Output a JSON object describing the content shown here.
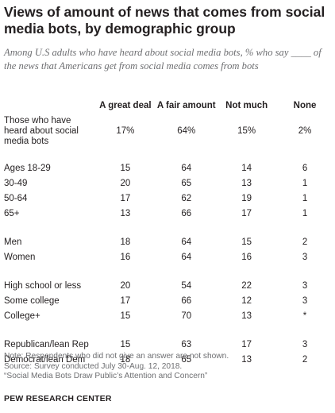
{
  "title": "Views of amount of news that comes from social media bots, by demographic group",
  "subtitle": "Among U.S adults who have heard about social media bots, % who say ____ of the news that Americans get from social media comes from bots",
  "chart_data": {
    "type": "table",
    "columns": [
      "A great deal",
      "A fair amount",
      "Not much",
      "None"
    ],
    "rows": [
      {
        "label": "Those who have heard about social media bots",
        "values": [
          "17%",
          "64%",
          "15%",
          "2%"
        ]
      },
      {
        "label": "Ages 18-29",
        "values": [
          "15",
          "64",
          "14",
          "6"
        ]
      },
      {
        "label": "30-49",
        "values": [
          "20",
          "65",
          "13",
          "1"
        ]
      },
      {
        "label": "50-64",
        "values": [
          "17",
          "62",
          "19",
          "1"
        ]
      },
      {
        "label": "65+",
        "values": [
          "13",
          "66",
          "17",
          "1"
        ]
      },
      {
        "label": "Men",
        "values": [
          "18",
          "64",
          "15",
          "2"
        ]
      },
      {
        "label": "Women",
        "values": [
          "16",
          "64",
          "16",
          "3"
        ]
      },
      {
        "label": "High school or less",
        "values": [
          "20",
          "54",
          "22",
          "3"
        ]
      },
      {
        "label": "Some college",
        "values": [
          "17",
          "66",
          "12",
          "3"
        ]
      },
      {
        "label": "College+",
        "values": [
          "15",
          "70",
          "13",
          "*"
        ]
      },
      {
        "label": "Republican/lean Rep",
        "values": [
          "15",
          "63",
          "17",
          "3"
        ]
      },
      {
        "label": "Democrat/lean Dem",
        "values": [
          "18",
          "65",
          "13",
          "2"
        ]
      }
    ]
  },
  "notes": {
    "line1": "Note: Respondents who did not give an answer are not shown.",
    "line2": "Source: Survey conducted July 30-Aug. 12, 2018.",
    "line3": "“Social Media Bots Draw Public’s Attention and Concern”"
  },
  "brand": "PEW RESEARCH CENTER"
}
